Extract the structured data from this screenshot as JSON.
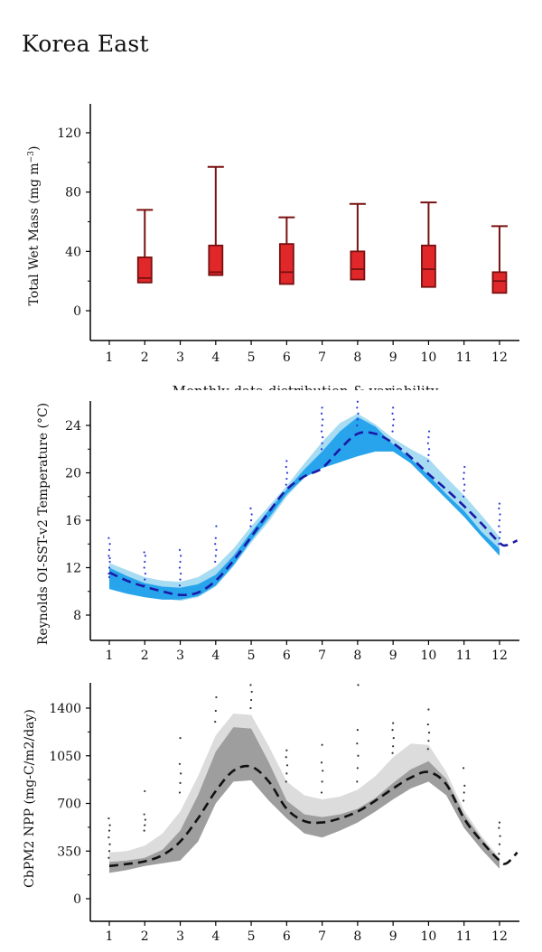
{
  "page": {
    "title": "Korea East"
  },
  "chart_data": [
    {
      "type": "box",
      "ylabel_main": "Total Wet Mass (mg m",
      "ylabel_sup": "−3",
      "ylabel_end": ")",
      "xlabel": "Monthly data distribution & variability",
      "x_ticks": [
        "1",
        "2",
        "3",
        "4",
        "5",
        "6",
        "7",
        "8",
        "9",
        "10",
        "11",
        "12"
      ],
      "y_ticks": [
        "0",
        "40",
        "80",
        "120"
      ],
      "y_tick_values": [
        0,
        40,
        80,
        120
      ],
      "ylim": [
        -20,
        140
      ],
      "box_color": "#e0282a",
      "edge_color": "#7a1010",
      "boxes": [
        {
          "month": 2,
          "min": 19,
          "q1": 19,
          "median": 22,
          "q3": 36,
          "max": 68
        },
        {
          "month": 4,
          "min": 24,
          "q1": 24,
          "median": 26,
          "q3": 44,
          "max": 97
        },
        {
          "month": 6,
          "min": 18,
          "q1": 18,
          "median": 26,
          "q3": 45,
          "max": 63
        },
        {
          "month": 8,
          "min": 21,
          "q1": 21,
          "median": 28,
          "q3": 40,
          "max": 72
        },
        {
          "month": 10,
          "min": 16,
          "q1": 16,
          "median": 28,
          "q3": 44,
          "max": 73
        },
        {
          "month": 12,
          "min": 12,
          "q1": 12,
          "median": 20,
          "q3": 26,
          "max": 57
        }
      ]
    },
    {
      "type": "line",
      "ylabel": "Reynolds OI-SST-v2 Temperature (°C)",
      "x_ticks": [
        "1",
        "2",
        "3",
        "4",
        "5",
        "6",
        "7",
        "8",
        "9",
        "10",
        "11",
        "12"
      ],
      "y_ticks": [
        "8",
        "12",
        "16",
        "20",
        "24"
      ],
      "y_tick_values": [
        8,
        12,
        16,
        20,
        24
      ],
      "xlim": [
        0.5,
        12.5
      ],
      "ylim": [
        6,
        26
      ],
      "mean_color": "#1a1aa6",
      "outer_band_color": "#a7dcf2",
      "inner_band_color": "#27a4ec",
      "point_color": "#2a38d6",
      "mean": {
        "x": [
          1,
          1.5,
          2,
          2.5,
          3,
          3.5,
          4,
          4.5,
          5,
          5.5,
          6,
          6.5,
          7,
          7.5,
          8,
          8.5,
          9,
          9.5,
          10,
          10.5,
          11,
          11.5,
          12,
          12.2,
          12.5
        ],
        "y": [
          11.6,
          10.9,
          10.4,
          10.0,
          9.7,
          9.9,
          10.9,
          12.6,
          14.6,
          16.7,
          18.6,
          19.7,
          20.4,
          22.0,
          23.3,
          23.3,
          22.5,
          21.3,
          19.9,
          18.6,
          17.2,
          15.7,
          14.1,
          13.9,
          14.3
        ]
      },
      "outer_band": {
        "x": [
          1,
          1.5,
          2,
          2.5,
          3,
          3.5,
          4,
          4.5,
          5,
          5.5,
          6,
          6.5,
          7,
          7.5,
          8,
          8.5,
          9,
          9.5,
          10,
          10.5,
          11,
          11.5,
          12
        ],
        "upper": [
          12.4,
          11.8,
          11.2,
          10.9,
          10.8,
          11.2,
          12.1,
          13.6,
          15.5,
          17.2,
          18.9,
          20.8,
          22.6,
          24.2,
          25.0,
          24.1,
          22.9,
          22.0,
          21.2,
          19.6,
          18.1,
          16.4,
          14.6
        ],
        "lower": [
          11.0,
          10.3,
          9.8,
          9.4,
          9.2,
          9.5,
          10.4,
          12.1,
          14.1,
          15.9,
          18.0,
          19.6,
          20.5,
          21.0,
          21.4,
          21.8,
          21.8,
          20.9,
          19.5,
          18.0,
          16.4,
          14.7,
          13.1
        ]
      },
      "inner_band": {
        "x": [
          1,
          1.5,
          2,
          2.5,
          3,
          3.5,
          4,
          4.5,
          5,
          5.5,
          6,
          6.5,
          7,
          7.5,
          8,
          8.5,
          9,
          9.5,
          10,
          10.5,
          11,
          11.5,
          12
        ],
        "upper": [
          12.0,
          11.3,
          10.7,
          10.4,
          10.3,
          10.6,
          11.4,
          13.0,
          15.0,
          16.9,
          18.6,
          20.3,
          21.8,
          23.5,
          24.7,
          23.9,
          22.4,
          21.2,
          19.8,
          18.2,
          16.8,
          15.0,
          13.6
        ],
        "lower": [
          10.2,
          9.8,
          9.5,
          9.3,
          9.3,
          9.6,
          10.5,
          12.2,
          14.3,
          16.2,
          18.2,
          19.6,
          20.4,
          20.9,
          21.4,
          21.8,
          21.8,
          20.8,
          19.3,
          17.8,
          16.3,
          14.6,
          13.0
        ]
      },
      "scatter_months": [
        {
          "x": 1,
          "y": [
            11.5,
            12.0,
            12.5,
            13.0,
            13.5,
            14.0,
            14.5,
            11.2,
            12.8
          ]
        },
        {
          "x": 2,
          "y": [
            10.5,
            11.0,
            11.5,
            12.0,
            12.5,
            13.0,
            13.3
          ]
        },
        {
          "x": 3,
          "y": [
            10.5,
            11.0,
            11.5,
            12.0,
            12.5,
            13.0,
            13.5
          ]
        },
        {
          "x": 4,
          "y": [
            12.5,
            13.0,
            13.5,
            14.0,
            14.5,
            15.5
          ]
        },
        {
          "x": 5,
          "y": [
            15.5,
            16.0,
            16.5,
            17.0
          ]
        },
        {
          "x": 6,
          "y": [
            19.0,
            19.5,
            20.0,
            20.5,
            21.0
          ]
        },
        {
          "x": 7,
          "y": [
            22.0,
            22.5,
            23.0,
            23.5,
            24.0,
            24.5,
            25.0,
            25.5
          ]
        },
        {
          "x": 8,
          "y": [
            24.0,
            24.5,
            25.0,
            25.5,
            26.0
          ]
        },
        {
          "x": 9,
          "y": [
            23.5,
            24.0,
            24.5,
            25.0,
            25.5
          ]
        },
        {
          "x": 10,
          "y": [
            21.0,
            21.5,
            22.0,
            22.5,
            23.0,
            23.5
          ]
        },
        {
          "x": 11,
          "y": [
            18.0,
            18.5,
            19.0,
            19.5,
            20.0,
            20.5
          ]
        },
        {
          "x": 12,
          "y": [
            14.0,
            14.5,
            15.0,
            15.5,
            16.0,
            16.5,
            17.0,
            17.4
          ]
        }
      ]
    },
    {
      "type": "line",
      "ylabel": "CbPM2 NPP (mg-C/m2/day)",
      "x_ticks": [
        "1",
        "2",
        "3",
        "4",
        "5",
        "6",
        "7",
        "8",
        "9",
        "10",
        "11",
        "12"
      ],
      "y_ticks": [
        "0",
        "350",
        "700",
        "1050",
        "1400"
      ],
      "y_tick_values": [
        0,
        350,
        700,
        1050,
        1400
      ],
      "xlim": [
        0.5,
        12.5
      ],
      "ylim": [
        -150,
        1600
      ],
      "mean_color": "#111111",
      "outer_band_color": "#dcdcdc",
      "inner_band_color": "#9e9e9e",
      "point_color": "#333333",
      "mean": {
        "x": [
          1,
          1.5,
          2,
          2.5,
          3,
          3.5,
          4,
          4.5,
          5,
          5.5,
          6,
          6.5,
          7,
          7.5,
          8,
          8.5,
          9,
          9.5,
          10,
          10.5,
          11,
          11.5,
          12,
          12.2,
          12.5
        ],
        "y": [
          240,
          255,
          275,
          320,
          420,
          590,
          790,
          940,
          970,
          860,
          660,
          570,
          560,
          590,
          640,
          720,
          810,
          890,
          930,
          840,
          590,
          420,
          280,
          260,
          340
        ]
      },
      "outer_band": {
        "x": [
          1,
          1.5,
          2,
          2.5,
          3,
          3.5,
          4,
          4.5,
          5,
          5.5,
          6,
          6.5,
          7,
          7.5,
          8,
          8.5,
          9,
          9.5,
          10,
          10.5,
          11,
          11.5,
          12
        ],
        "upper": [
          340,
          350,
          390,
          480,
          640,
          900,
          1200,
          1360,
          1350,
          1120,
          860,
          760,
          730,
          750,
          800,
          900,
          1040,
          1140,
          1130,
          930,
          650,
          460,
          300
        ],
        "lower": [
          190,
          210,
          240,
          260,
          280,
          420,
          700,
          860,
          870,
          720,
          590,
          480,
          450,
          500,
          560,
          640,
          730,
          810,
          860,
          760,
          520,
          360,
          220
        ]
      },
      "inner_band": {
        "x": [
          1,
          1.5,
          2,
          2.5,
          3,
          3.5,
          4,
          4.5,
          5,
          5.5,
          6,
          6.5,
          7,
          7.5,
          8,
          8.5,
          9,
          9.5,
          10,
          10.5,
          11,
          11.5,
          12
        ],
        "upper": [
          270,
          280,
          300,
          360,
          500,
          760,
          1080,
          1260,
          1250,
          1000,
          720,
          620,
          600,
          620,
          660,
          740,
          850,
          950,
          1010,
          880,
          620,
          440,
          280
        ],
        "lower": [
          190,
          210,
          240,
          260,
          280,
          420,
          700,
          860,
          870,
          720,
          590,
          480,
          450,
          500,
          560,
          640,
          730,
          810,
          860,
          760,
          520,
          360,
          220
        ]
      },
      "scatter_months": [
        {
          "x": 1,
          "y": [
            300,
            350,
            400,
            450,
            500,
            540,
            590
          ]
        },
        {
          "x": 2,
          "y": [
            500,
            540,
            580,
            620,
            790
          ]
        },
        {
          "x": 3,
          "y": [
            780,
            850,
            920,
            990,
            1180
          ]
        },
        {
          "x": 4,
          "y": [
            1300,
            1380,
            1480
          ]
        },
        {
          "x": 5,
          "y": [
            1400,
            1460,
            1520,
            1570
          ]
        },
        {
          "x": 6,
          "y": [
            860,
            920,
            980,
            1040,
            1090
          ]
        },
        {
          "x": 7,
          "y": [
            780,
            860,
            940,
            1000,
            1130
          ]
        },
        {
          "x": 8,
          "y": [
            860,
            960,
            1050,
            1140,
            1240,
            1570
          ]
        },
        {
          "x": 9,
          "y": [
            1070,
            1120,
            1180,
            1240,
            1290
          ]
        },
        {
          "x": 10,
          "y": [
            1100,
            1160,
            1220,
            1280,
            1390
          ]
        },
        {
          "x": 11,
          "y": [
            720,
            780,
            830,
            960
          ]
        },
        {
          "x": 12,
          "y": [
            330,
            400,
            460,
            520,
            560
          ]
        }
      ]
    }
  ]
}
